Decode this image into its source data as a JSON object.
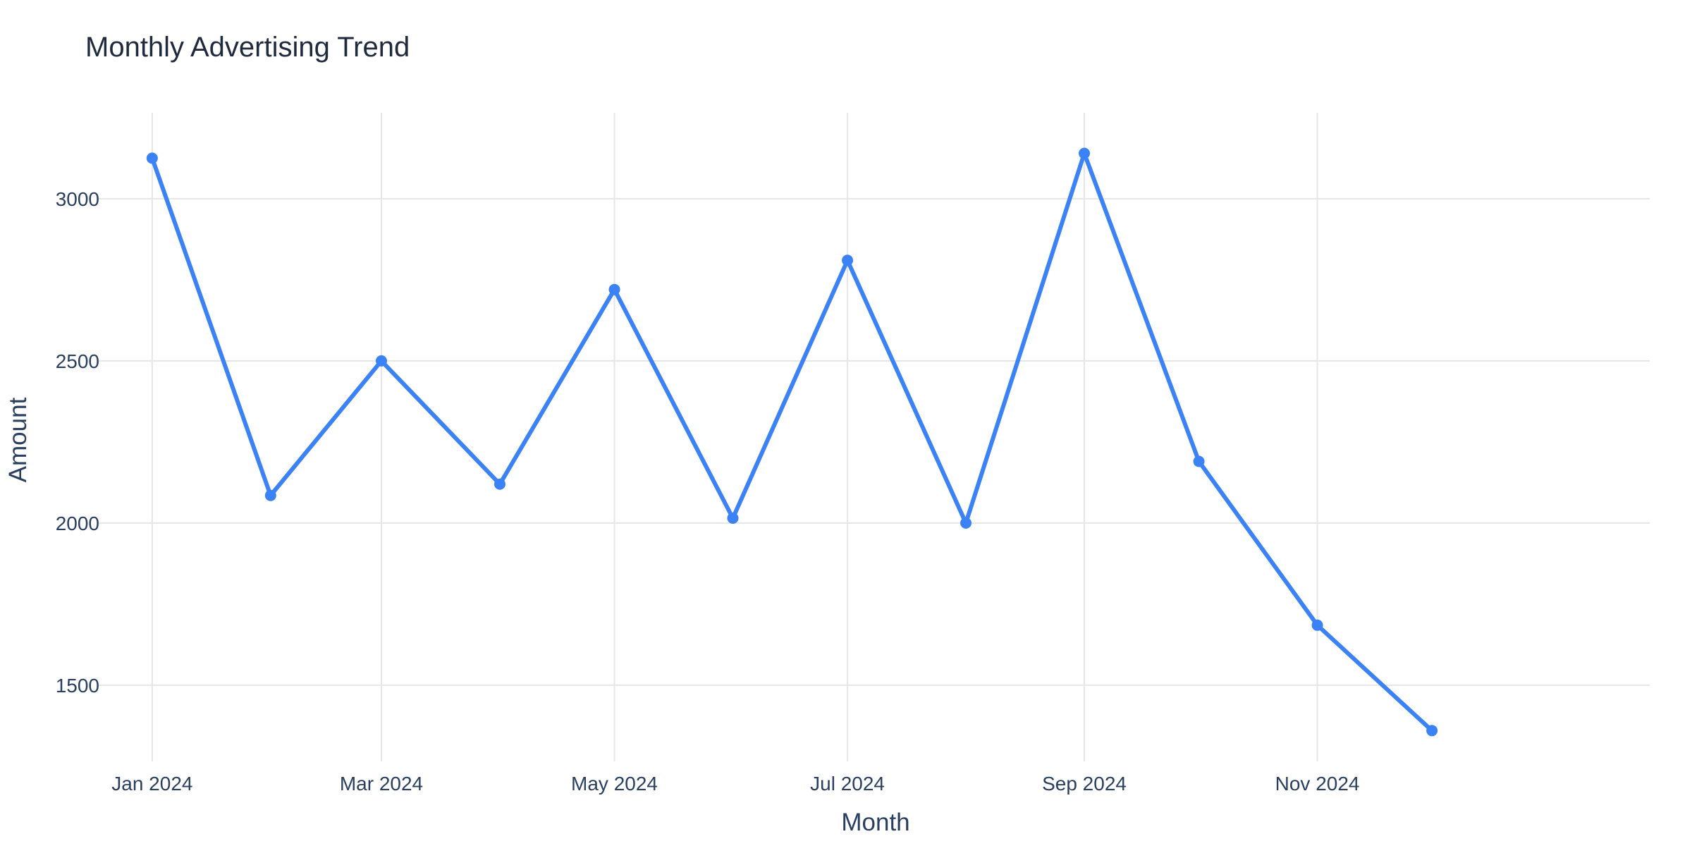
{
  "chart_data": {
    "type": "line",
    "title": "Monthly Advertising Trend",
    "xlabel": "Month",
    "ylabel": "Amount",
    "x": [
      "2024-01-01",
      "2024-02-01",
      "2024-03-01",
      "2024-04-01",
      "2024-05-01",
      "2024-06-01",
      "2024-07-01",
      "2024-08-01",
      "2024-09-01",
      "2024-10-01",
      "2024-11-01",
      "2024-12-01"
    ],
    "series": [
      {
        "values": [
          3125,
          2085,
          2500,
          2120,
          2720,
          2015,
          2810,
          2000,
          3140,
          2190,
          1685,
          1360
        ],
        "color": "#3b82f6"
      }
    ],
    "xticks": [
      {
        "date": "2024-01-01",
        "label": "Jan 2024"
      },
      {
        "date": "2024-03-01",
        "label": "Mar 2024"
      },
      {
        "date": "2024-05-01",
        "label": "May 2024"
      },
      {
        "date": "2024-07-01",
        "label": "Jul 2024"
      },
      {
        "date": "2024-09-01",
        "label": "Sep 2024"
      },
      {
        "date": "2024-11-01",
        "label": "Nov 2024"
      }
    ],
    "yticks": [
      1500,
      2000,
      2500,
      3000
    ],
    "xlim": [
      "2023-12-18",
      "2025-01-27"
    ],
    "ylim": [
      1265,
      3265
    ],
    "grid": true,
    "legend": "none"
  }
}
